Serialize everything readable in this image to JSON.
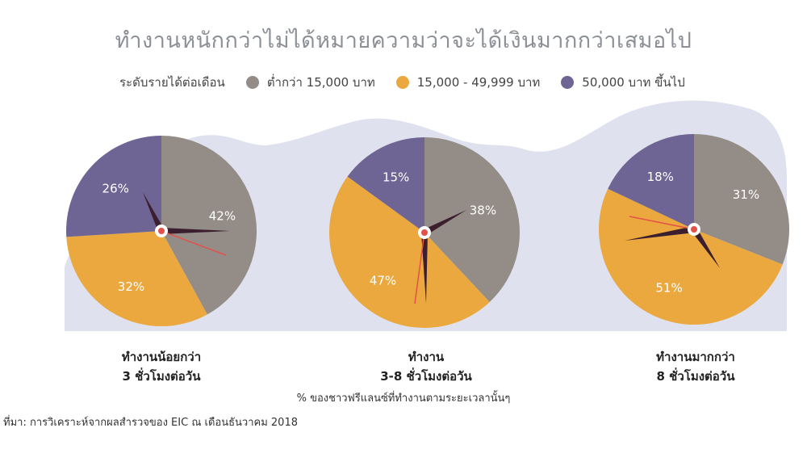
{
  "title": "ทำงานหนักกว่าไม่ได้หมายความว่าจะได้เงินมากกว่าเสมอไป",
  "legend": {
    "label": "ระดับรายได้ต่อเดือน",
    "items": [
      {
        "label": "ต่ำกว่า 15,000 บาท",
        "color": "#948c86"
      },
      {
        "label": "15,000 - 49,999 บาท",
        "color": "#eaa83e"
      },
      {
        "label": "50,000 บาท ขึ้นไป",
        "color": "#6f6595"
      }
    ]
  },
  "colors": {
    "grey": "#948c86",
    "orange": "#eaa83e",
    "purple": "#6f6595",
    "background_shape": "#dfe2ee",
    "hand": "#3b1f2e",
    "second_hand": "#e3514a"
  },
  "chart_data": [
    {
      "type": "pie",
      "group_line1": "ทำงานน้อยกว่า",
      "group_line2": "3 ชั่วโมงต่อวัน",
      "slices": [
        {
          "series": "ต่ำกว่า 15,000 บาท",
          "value": 42,
          "label": "42%"
        },
        {
          "series": "15,000 - 49,999 บาท",
          "value": 32,
          "label": "32%"
        },
        {
          "series": "50,000 บาท ขึ้นไป",
          "value": 26,
          "label": "26%"
        }
      ]
    },
    {
      "type": "pie",
      "group_line1": "ทำงาน",
      "group_line2": "3-8 ชั่วโมงต่อวัน",
      "slices": [
        {
          "series": "ต่ำกว่า 15,000 บาท",
          "value": 38,
          "label": "38%"
        },
        {
          "series": "15,000 - 49,999 บาท",
          "value": 47,
          "label": "47%"
        },
        {
          "series": "50,000 บาท ขึ้นไป",
          "value": 15,
          "label": "15%"
        }
      ]
    },
    {
      "type": "pie",
      "group_line1": "ทำงานมากกว่า",
      "group_line2": "8 ชั่วโมงต่อวัน",
      "slices": [
        {
          "series": "ต่ำกว่า 15,000 บาท",
          "value": 31,
          "label": "31%"
        },
        {
          "series": "15,000 - 49,999 บาท",
          "value": 51,
          "label": "51%"
        },
        {
          "series": "50,000 บาท ขึ้นไป",
          "value": 18,
          "label": "18%"
        }
      ]
    }
  ],
  "note": "% ของชาวฟรีแลนซ์ที่ทำงานตามระยะเวลานั้นๆ",
  "source": "ที่มา: การวิเคราะห์จากผลสำรวจของ EIC ณ เดือนธันวาคม 2018"
}
